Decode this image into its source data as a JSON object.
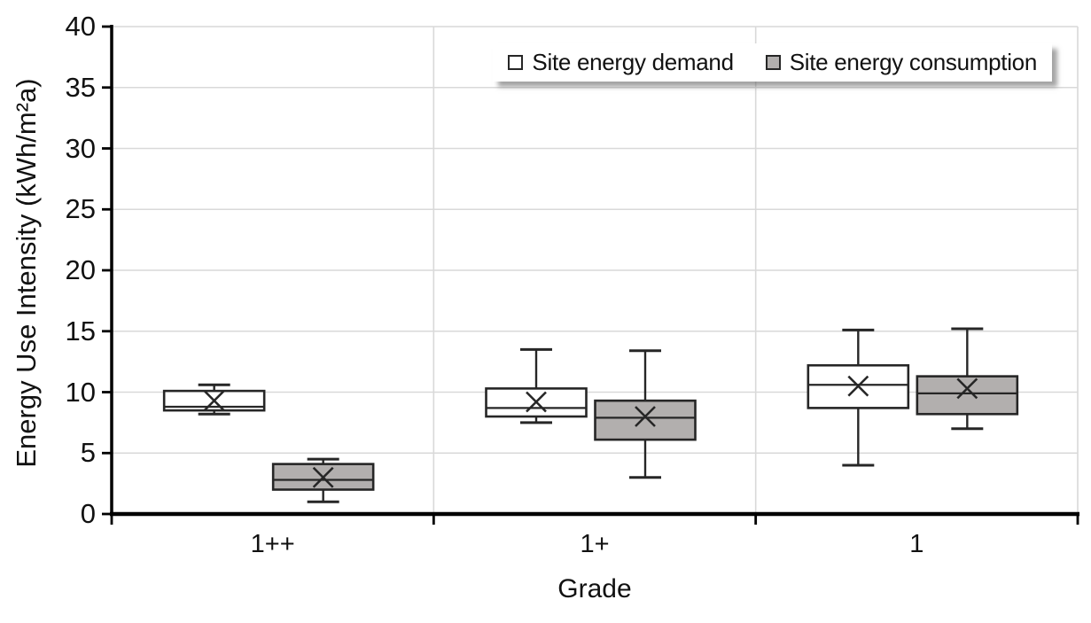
{
  "figure": {
    "y_axis_label": "Energy Use Intensity (kWh/m²a)",
    "x_axis_label": "Grade"
  },
  "legend": {
    "items": [
      {
        "label": "Site energy demand",
        "swatch_color": "#ffffff"
      },
      {
        "label": "Site energy consumption",
        "swatch_color": "#b2afae"
      }
    ]
  },
  "chart_data": {
    "type": "boxplot",
    "title": "",
    "xlabel": "Grade",
    "ylabel": "Energy Use Intensity (kWh/m²a)",
    "categories": [
      "1++",
      "1+",
      "1"
    ],
    "ylim": [
      0,
      40
    ],
    "ytick_step": 5,
    "grid": true,
    "legend_position": "top-right",
    "mean_marker": "x",
    "series": [
      {
        "name": "Site energy demand",
        "fill": "#ffffff",
        "boxes": [
          {
            "category": "1++",
            "whisker_low": 8.2,
            "q1": 8.5,
            "median": 8.8,
            "q3": 10.1,
            "whisker_high": 10.6,
            "mean": 9.3
          },
          {
            "category": "1+",
            "whisker_low": 7.5,
            "q1": 8.0,
            "median": 8.7,
            "q3": 10.3,
            "whisker_high": 13.5,
            "mean": 9.2
          },
          {
            "category": "1",
            "whisker_low": 4.0,
            "q1": 8.7,
            "median": 10.6,
            "q3": 12.2,
            "whisker_high": 15.1,
            "mean": 10.5
          }
        ]
      },
      {
        "name": "Site energy consumption",
        "fill": "#b2afae",
        "boxes": [
          {
            "category": "1++",
            "whisker_low": 1.0,
            "q1": 2.0,
            "median": 2.8,
            "q3": 4.1,
            "whisker_high": 4.5,
            "mean": 3.0
          },
          {
            "category": "1+",
            "whisker_low": 3.0,
            "q1": 6.1,
            "median": 7.9,
            "q3": 9.3,
            "whisker_high": 13.4,
            "mean": 8.0
          },
          {
            "category": "1",
            "whisker_low": 7.0,
            "q1": 8.2,
            "median": 9.9,
            "q3": 11.3,
            "whisker_high": 15.2,
            "mean": 10.3
          }
        ]
      }
    ],
    "colors": {
      "grid": "#d9d9d9",
      "axis": "#000000",
      "box_border": "#262626",
      "text": "#111111"
    }
  }
}
